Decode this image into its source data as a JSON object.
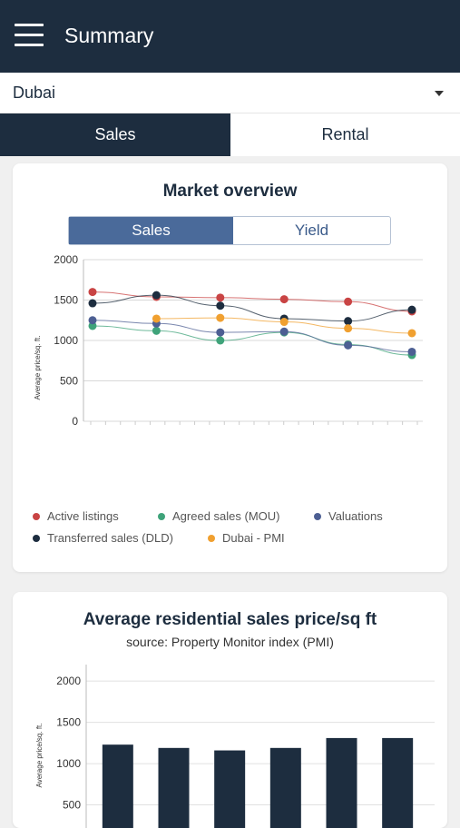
{
  "header": {
    "title": "Summary",
    "menu_icon": "hamburger-icon"
  },
  "location": {
    "selected": "Dubai"
  },
  "tabs": [
    {
      "label": "Sales",
      "active": true
    },
    {
      "label": "Rental",
      "active": false
    }
  ],
  "market_overview": {
    "title": "Market overview",
    "toggle": [
      {
        "label": "Sales",
        "active": true
      },
      {
        "label": "Yield",
        "active": false
      }
    ],
    "legend": [
      {
        "label": "Active listings",
        "color": "#c94444"
      },
      {
        "label": "Agreed sales (MOU)",
        "color": "#3fa37a"
      },
      {
        "label": "Valuations",
        "color": "#4d5f93"
      },
      {
        "label": "Transferred sales (DLD)",
        "color": "#1d2d3f"
      },
      {
        "label": "Dubai - PMI",
        "color": "#f0a030"
      }
    ]
  },
  "residential": {
    "title": "Average residential sales price/sq ft",
    "subtitle": "source: Property Monitor index (PMI)"
  },
  "chart_data": [
    {
      "type": "line",
      "ylabel": "Average price/sq. ft.",
      "ylim": [
        0,
        2000
      ],
      "yticks": [
        "0",
        "500",
        "1000",
        "1500",
        "2000"
      ],
      "grid": true,
      "legend_position": "bottom",
      "series": [
        {
          "name": "Active listings",
          "color": "#c94444",
          "values": [
            1600,
            1540,
            1530,
            1510,
            1480,
            1360
          ]
        },
        {
          "name": "Agreed sales (MOU)",
          "color": "#3fa37a",
          "values": [
            1180,
            1120,
            1000,
            1100,
            950,
            820
          ]
        },
        {
          "name": "Valuations",
          "color": "#4d5f93",
          "values": [
            1250,
            1210,
            1100,
            1110,
            940,
            860
          ]
        },
        {
          "name": "Transferred sales (DLD)",
          "color": "#1d2d3f",
          "values": [
            1460,
            1560,
            1430,
            1270,
            1240,
            1380
          ]
        },
        {
          "name": "Dubai - PMI",
          "color": "#f0a030",
          "values": [
            null,
            1270,
            1280,
            1230,
            1150,
            1090
          ]
        }
      ]
    },
    {
      "type": "bar",
      "ylabel": "Average price/sq. ft.",
      "ylim": [
        0,
        2200
      ],
      "yticks": [
        "500",
        "1000",
        "1500",
        "2000"
      ],
      "values": [
        1230,
        1190,
        1160,
        1190,
        1310,
        1310
      ],
      "color": "#1d2d3f"
    }
  ]
}
